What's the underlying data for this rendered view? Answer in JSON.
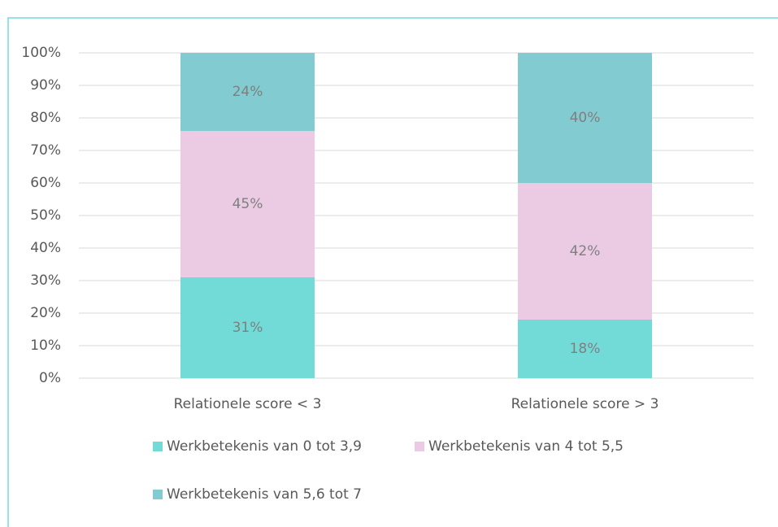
{
  "chart_data": {
    "type": "stacked_bar",
    "categories": [
      "Relationele score < 3",
      "Relationele score > 3"
    ],
    "series": [
      {
        "name": "Werkbetekenis van 0 tot 3,9",
        "color": "#72dbd8",
        "values": [
          31,
          18
        ],
        "value_labels": [
          "31%",
          "18%"
        ]
      },
      {
        "name": "Werkbetekenis van 4 tot 5,5",
        "color": "#ebcbe3",
        "values": [
          45,
          42
        ],
        "value_labels": [
          "45%",
          "42%"
        ]
      },
      {
        "name": "Werkbetekenis van 5,6 tot 7",
        "color": "#82cbd1",
        "values": [
          24,
          40
        ],
        "value_labels": [
          "24%",
          "40%"
        ]
      }
    ],
    "ylim": [
      0,
      100
    ],
    "yticks": [
      {
        "value": 0,
        "label": "0%"
      },
      {
        "value": 10,
        "label": "10%"
      },
      {
        "value": 20,
        "label": "20%"
      },
      {
        "value": 30,
        "label": "30%"
      },
      {
        "value": 40,
        "label": "40%"
      },
      {
        "value": 50,
        "label": "50%"
      },
      {
        "value": 60,
        "label": "60%"
      },
      {
        "value": 70,
        "label": "70%"
      },
      {
        "value": 80,
        "label": "80%"
      },
      {
        "value": 90,
        "label": "90%"
      },
      {
        "value": 100,
        "label": "100%"
      }
    ],
    "grid": true,
    "legend": "bottom"
  }
}
